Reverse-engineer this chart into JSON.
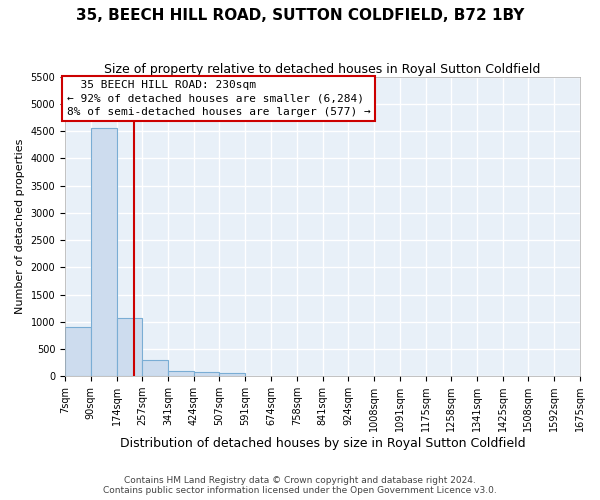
{
  "title": "35, BEECH HILL ROAD, SUTTON COLDFIELD, B72 1BY",
  "subtitle": "Size of property relative to detached houses in Royal Sutton Coldfield",
  "xlabel": "Distribution of detached houses by size in Royal Sutton Coldfield",
  "ylabel": "Number of detached properties",
  "bin_edges": [
    7,
    90,
    174,
    257,
    341,
    424,
    507,
    591,
    674,
    758,
    841,
    924,
    1008,
    1091,
    1175,
    1258,
    1341,
    1425,
    1508,
    1592,
    1675
  ],
  "bin_counts": [
    900,
    4560,
    1060,
    290,
    105,
    80,
    50,
    0,
    0,
    0,
    0,
    0,
    0,
    0,
    0,
    0,
    0,
    0,
    0,
    0
  ],
  "bar_color": "#cddcee",
  "bar_edge_color": "#7aadd4",
  "vline_color": "#cc0000",
  "vline_x": 230,
  "annotation_line1": "  35 BEECH HILL ROAD: 230sqm",
  "annotation_line2": "← 92% of detached houses are smaller (6,284)",
  "annotation_line3": "8% of semi-detached houses are larger (577) →",
  "annotation_box_color": "#cc0000",
  "annotation_bg": "white",
  "ylim_max": 5500,
  "yticks": [
    0,
    500,
    1000,
    1500,
    2000,
    2500,
    3000,
    3500,
    4000,
    4500,
    5000,
    5500
  ],
  "footer1": "Contains HM Land Registry data © Crown copyright and database right 2024.",
  "footer2": "Contains public sector information licensed under the Open Government Licence v3.0.",
  "plot_bg_color": "#e8f0f8",
  "grid_color": "#ffffff",
  "title_fontsize": 11,
  "subtitle_fontsize": 9,
  "ylabel_fontsize": 8,
  "xlabel_fontsize": 9,
  "tick_fontsize": 7,
  "footer_fontsize": 6.5,
  "annot_fontsize": 8
}
